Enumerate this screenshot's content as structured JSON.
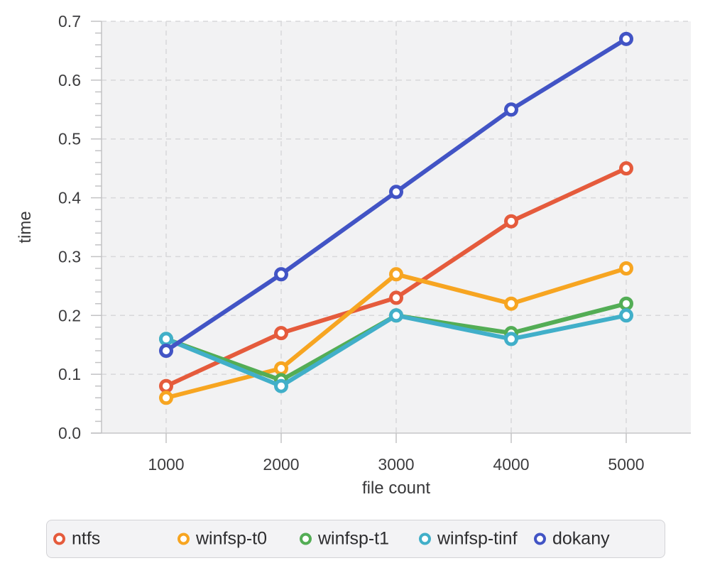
{
  "chart_data": {
    "type": "line",
    "title": "",
    "xlabel": "file count",
    "ylabel": "time",
    "x": [
      1000,
      2000,
      3000,
      4000,
      5000
    ],
    "x_ticks": [
      1000,
      2000,
      3000,
      4000,
      5000
    ],
    "x_tick_labels": [
      "1000",
      "2000",
      "3000",
      "4000",
      "5000"
    ],
    "y_ticks": [
      0.0,
      0.1,
      0.2,
      0.3,
      0.4,
      0.5,
      0.6,
      0.7
    ],
    "y_tick_labels": [
      "0.0",
      "0.1",
      "0.2",
      "0.3",
      "0.4",
      "0.5",
      "0.6",
      "0.7"
    ],
    "ylim": [
      0,
      0.7
    ],
    "y_minor_tick_step": 0.02,
    "grid": true,
    "legend_position": "bottom",
    "panel_background": "#f2f2f3",
    "series": [
      {
        "name": "ntfs",
        "color": "#e55b3c",
        "values": [
          0.08,
          0.17,
          0.23,
          0.36,
          0.45
        ]
      },
      {
        "name": "winfsp-t0",
        "color": "#f7a521",
        "values": [
          0.06,
          0.11,
          0.27,
          0.22,
          0.28
        ]
      },
      {
        "name": "winfsp-t1",
        "color": "#53ad55",
        "values": [
          0.16,
          0.09,
          0.2,
          0.17,
          0.22
        ]
      },
      {
        "name": "winfsp-tinf",
        "color": "#41afc9",
        "values": [
          0.16,
          0.08,
          0.2,
          0.16,
          0.2
        ]
      },
      {
        "name": "dokany",
        "color": "#4254c5",
        "values": [
          0.14,
          0.27,
          0.41,
          0.55,
          0.67
        ]
      }
    ]
  }
}
